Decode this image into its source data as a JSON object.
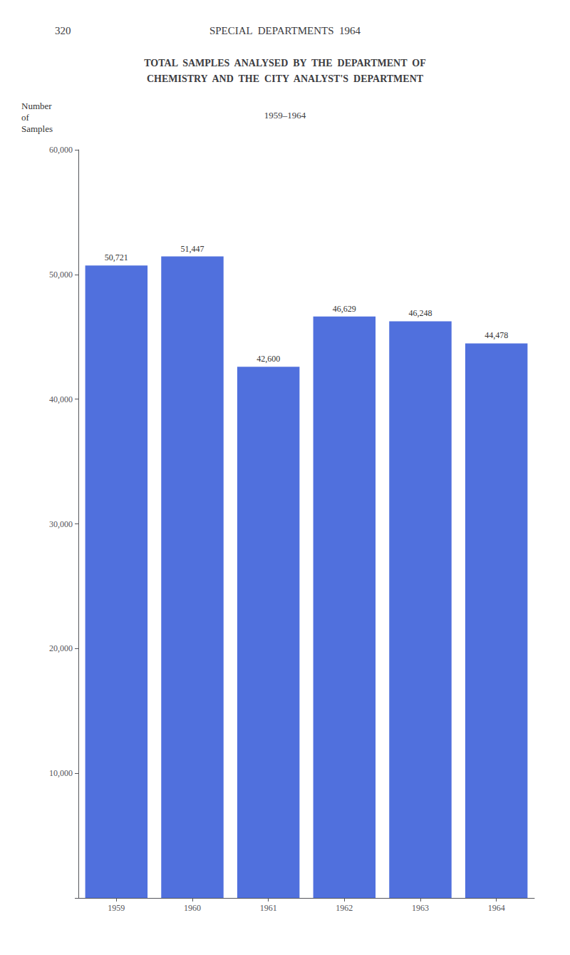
{
  "chart_data": {
    "type": "bar",
    "annotations": [
      "320",
      "SPECIAL  DEPARTMENTS  1964"
    ],
    "title": "TOTAL  SAMPLES  ANALYSED  BY  THE  DEPARTMENT  OF\nCHEMISTRY  AND  THE  CITY  ANALYST'S  DEPARTMENT",
    "subtitle": "1959–1964",
    "ylabel": "Number\nof\nSamples",
    "categories": [
      "1959",
      "1960",
      "1961",
      "1962",
      "1963",
      "1964"
    ],
    "values": [
      50721,
      51447,
      42600,
      46629,
      46248,
      44478
    ],
    "value_labels": [
      "50,721",
      "51,447",
      "42,600",
      "46,629",
      "46,248",
      "44,478"
    ],
    "data_labels": true,
    "ylim": [
      0,
      60000
    ],
    "yticks": [
      {
        "value": 0,
        "label": ""
      },
      {
        "value": 10000,
        "label": "10,000"
      },
      {
        "value": 20000,
        "label": "20,000"
      },
      {
        "value": 30000,
        "label": "30,000"
      },
      {
        "value": 40000,
        "label": "40,000"
      },
      {
        "value": 50000,
        "label": "50,000"
      },
      {
        "value": 60000,
        "label": "60,000"
      }
    ],
    "grid": false
  }
}
